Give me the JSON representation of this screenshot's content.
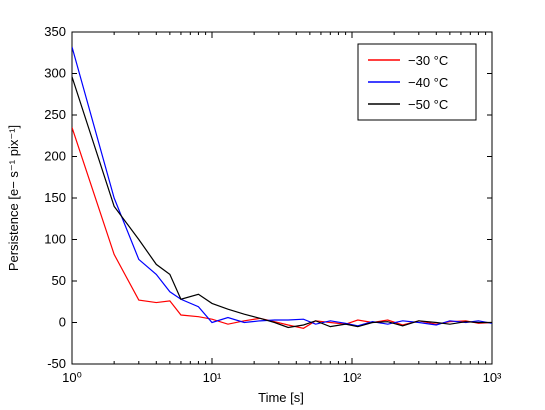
{
  "chart_data": {
    "type": "line",
    "title": "",
    "xlabel": "Time [s]",
    "ylabel": "Persistence [e− s⁻¹ pix⁻¹]",
    "xscale": "log",
    "xlim": [
      1,
      1000
    ],
    "ylim": [
      -50,
      350
    ],
    "x_tick_labels": [
      "10⁰",
      "10¹",
      "10²",
      "10³"
    ],
    "y_ticks": [
      -50,
      0,
      50,
      100,
      150,
      200,
      250,
      300,
      350
    ],
    "grid": false,
    "legend_position": "top-right",
    "series": [
      {
        "name": "−30 °C",
        "color": "#ff0000",
        "x": [
          1,
          2,
          3,
          4,
          5,
          6,
          8,
          10,
          13,
          17,
          22,
          28,
          35,
          45,
          55,
          70,
          90,
          110,
          140,
          180,
          230,
          300,
          400,
          500,
          650,
          800,
          1000
        ],
        "y": [
          235,
          82,
          27,
          24,
          26,
          9,
          7,
          4,
          -2,
          2,
          5,
          1,
          -3,
          -7,
          2,
          0,
          -2,
          3,
          0,
          3,
          -3,
          2,
          -2,
          1,
          2,
          -1,
          0
        ]
      },
      {
        "name": "−40 °C",
        "color": "#0000ff",
        "x": [
          1,
          2,
          3,
          4,
          5,
          6,
          8,
          10,
          13,
          17,
          22,
          28,
          35,
          45,
          55,
          70,
          90,
          110,
          140,
          180,
          230,
          300,
          400,
          500,
          650,
          800,
          1000
        ],
        "y": [
          332,
          150,
          76,
          58,
          37,
          28,
          19,
          0,
          6,
          0,
          2,
          3,
          3,
          4,
          -2,
          2,
          -1,
          -4,
          1,
          -2,
          2,
          0,
          -3,
          2,
          0,
          2,
          -1
        ]
      },
      {
        "name": "−50 °C",
        "color": "#000000",
        "x": [
          1,
          2,
          3,
          4,
          5,
          6,
          8,
          10,
          13,
          17,
          22,
          28,
          35,
          45,
          55,
          70,
          90,
          110,
          140,
          180,
          230,
          300,
          400,
          500,
          650,
          800,
          1000
        ],
        "y": [
          296,
          140,
          100,
          70,
          58,
          28,
          34,
          23,
          16,
          10,
          5,
          0,
          -6,
          -3,
          2,
          -5,
          -2,
          -5,
          0,
          1,
          -4,
          2,
          0,
          -2,
          1,
          0,
          0
        ]
      }
    ]
  }
}
